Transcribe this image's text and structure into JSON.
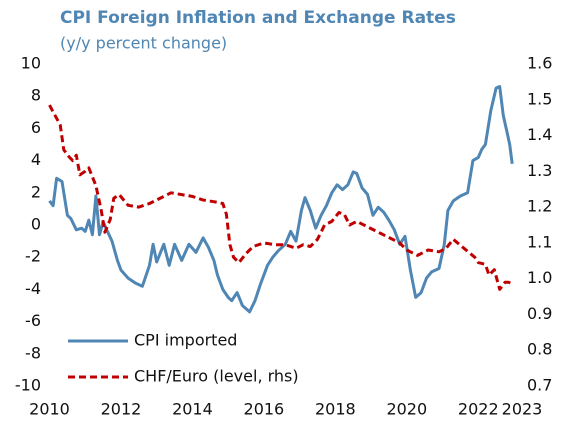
{
  "chart_data": {
    "type": "line",
    "title": "CPI Foreign Inflation and Exchange Rates",
    "subtitle": "(y/y percent change)",
    "xlim": [
      2010,
      2023
    ],
    "xticks": [
      2010,
      2012,
      2014,
      2016,
      2018,
      2020,
      2022,
      2023
    ],
    "ylim": [
      -10,
      10
    ],
    "yticks": [
      10,
      8,
      6,
      4,
      2,
      0,
      -2,
      -4,
      -6,
      -8,
      -10
    ],
    "y2lim": [
      0.7,
      1.6
    ],
    "y2ticks": [
      1.6,
      1.5,
      1.4,
      1.3,
      1.2,
      1.1,
      {
        "value": 1,
        "label": "1.0"
      },
      0.9,
      0.8,
      0.7
    ],
    "grid": false,
    "legend": "lower left",
    "series": [
      {
        "name": "CPI imported",
        "color": "#4f86b3",
        "dash": false,
        "x": [
          2010.0,
          2010.1,
          2010.2,
          2010.35,
          2010.5,
          2010.6,
          2010.75,
          2010.9,
          2011.0,
          2011.1,
          2011.2,
          2011.3,
          2011.4,
          2011.5,
          2011.6,
          2011.75,
          2011.9,
          2012.0,
          2012.2,
          2012.4,
          2012.6,
          2012.8,
          2012.9,
          2013.0,
          2013.2,
          2013.35,
          2013.5,
          2013.7,
          2013.9,
          2014.1,
          2014.3,
          2014.45,
          2014.6,
          2014.7,
          2014.85,
          2015.0,
          2015.1,
          2015.25,
          2015.4,
          2015.6,
          2015.75,
          2015.9,
          2016.1,
          2016.25,
          2016.4,
          2016.6,
          2016.75,
          2016.9,
          2017.05,
          2017.15,
          2017.3,
          2017.45,
          2017.6,
          2017.75,
          2017.9,
          2018.05,
          2018.2,
          2018.35,
          2018.5,
          2018.6,
          2018.75,
          2018.9,
          2019.05,
          2019.2,
          2019.35,
          2019.5,
          2019.65,
          2019.8,
          2019.95,
          2020.1,
          2020.25,
          2020.4,
          2020.55,
          2020.7,
          2020.9,
          2021.05,
          2021.15,
          2021.3,
          2021.5,
          2021.7,
          2021.85,
          2022.0,
          2022.1,
          2022.2,
          2022.35,
          2022.5,
          2022.6,
          2022.7,
          2022.8,
          2022.88,
          2022.95
        ],
        "values": [
          1.5,
          1.2,
          2.9,
          2.7,
          0.6,
          0.4,
          -0.3,
          -0.2,
          -0.4,
          0.3,
          -0.6,
          1.8,
          -0.6,
          0.2,
          -0.3,
          -1.0,
          -2.2,
          -2.8,
          -3.3,
          -3.6,
          -3.8,
          -2.5,
          -1.2,
          -2.3,
          -1.2,
          -2.5,
          -1.2,
          -2.2,
          -1.2,
          -1.7,
          -0.8,
          -1.4,
          -2.2,
          -3.1,
          -4.0,
          -4.5,
          -4.7,
          -4.2,
          -5.0,
          -5.4,
          -4.7,
          -3.7,
          -2.5,
          -2.0,
          -1.6,
          -1.2,
          -0.4,
          -1.0,
          0.9,
          1.7,
          0.9,
          -0.2,
          0.6,
          1.2,
          2.0,
          2.5,
          2.2,
          2.5,
          3.3,
          3.2,
          2.3,
          1.9,
          0.6,
          1.1,
          0.8,
          0.3,
          -0.3,
          -1.2,
          -0.7,
          -2.8,
          -4.5,
          -4.2,
          -3.3,
          -2.9,
          -2.7,
          -1.2,
          0.9,
          1.5,
          1.8,
          2.0,
          4.0,
          4.2,
          4.7,
          5.0,
          7.1,
          8.5,
          8.6,
          6.8,
          5.8,
          5.0,
          3.8
        ]
      },
      {
        "name": "CHF/Euro (level, rhs)",
        "color": "#c00000",
        "dash": true,
        "axis": "y2",
        "x": [
          2010.0,
          2010.15,
          2010.3,
          2010.4,
          2010.55,
          2010.65,
          2010.75,
          2010.85,
          2011.0,
          2011.1,
          2011.3,
          2011.45,
          2011.55,
          2011.7,
          2011.8,
          2011.95,
          2012.2,
          2012.5,
          2012.8,
          2013.0,
          2013.2,
          2013.4,
          2013.7,
          2014.0,
          2014.3,
          2014.6,
          2014.85,
          2014.95,
          2015.05,
          2015.15,
          2015.3,
          2015.5,
          2015.7,
          2016.0,
          2016.3,
          2016.6,
          2016.9,
          2017.1,
          2017.3,
          2017.5,
          2017.7,
          2017.9,
          2018.1,
          2018.25,
          2018.4,
          2018.6,
          2018.9,
          2019.2,
          2019.5,
          2019.8,
          2020.0,
          2020.3,
          2020.6,
          2020.9,
          2021.1,
          2021.3,
          2021.6,
          2021.9,
          2022.0,
          2022.2,
          2022.3,
          2022.45,
          2022.6,
          2022.75,
          2022.85,
          2022.95
        ],
        "values": [
          1.485,
          1.457,
          1.43,
          1.36,
          1.34,
          1.33,
          1.345,
          1.29,
          1.3,
          1.31,
          1.26,
          1.19,
          1.13,
          1.165,
          1.225,
          1.235,
          1.205,
          1.2,
          1.21,
          1.22,
          1.23,
          1.24,
          1.235,
          1.23,
          1.22,
          1.215,
          1.21,
          1.18,
          1.095,
          1.06,
          1.045,
          1.07,
          1.09,
          1.1,
          1.095,
          1.095,
          1.085,
          1.095,
          1.09,
          1.11,
          1.15,
          1.16,
          1.185,
          1.18,
          1.15,
          1.16,
          1.145,
          1.13,
          1.115,
          1.1,
          1.08,
          1.065,
          1.08,
          1.075,
          1.085,
          1.11,
          1.085,
          1.06,
          1.045,
          1.04,
          1.01,
          1.025,
          0.97,
          0.99,
          0.99,
          0.985
        ]
      }
    ]
  }
}
